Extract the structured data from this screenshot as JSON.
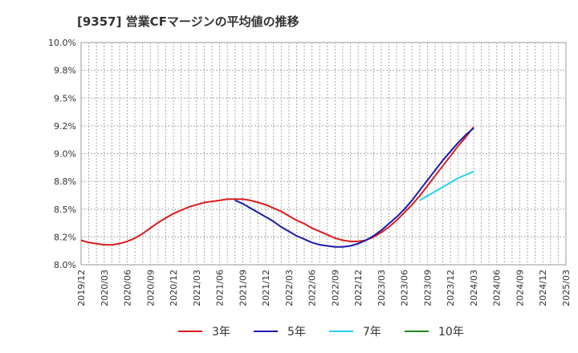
{
  "chart_data": {
    "type": "line",
    "title": "[9357]  営業CFマージンの平均値の推移",
    "xlabel": "",
    "ylabel": "",
    "ylim": [
      8.0,
      10.0
    ],
    "y_ticks": [
      "8.0%",
      "8.2%",
      "8.5%",
      "8.8%",
      "9.0%",
      "9.2%",
      "9.5%",
      "9.8%",
      "10.0%"
    ],
    "x_ticks": [
      "2019/12",
      "2020/03",
      "2020/06",
      "2020/09",
      "2020/12",
      "2021/03",
      "2021/06",
      "2021/09",
      "2021/12",
      "2022/03",
      "2022/06",
      "2022/09",
      "2022/12",
      "2023/03",
      "2023/06",
      "2023/09",
      "2023/12",
      "2024/03",
      "2024/06",
      "2024/09",
      "2024/12",
      "2025/03"
    ],
    "grid": true,
    "legend_position": "bottom",
    "series": [
      {
        "name": "3年",
        "color": "#dd1c1c",
        "x": [
          "2019/12",
          "2020/01",
          "2020/02",
          "2020/03",
          "2020/04",
          "2020/05",
          "2020/06",
          "2020/07",
          "2020/08",
          "2020/09",
          "2020/10",
          "2020/11",
          "2020/12",
          "2021/01",
          "2021/02",
          "2021/03",
          "2021/04",
          "2021/05",
          "2021/06",
          "2021/07",
          "2021/08",
          "2021/09",
          "2021/10",
          "2021/11",
          "2021/12",
          "2022/01",
          "2022/02",
          "2022/03",
          "2022/04",
          "2022/05",
          "2022/06",
          "2022/07",
          "2022/08",
          "2022/09",
          "2022/10",
          "2022/11",
          "2022/12",
          "2023/01",
          "2023/02",
          "2023/03",
          "2023/04",
          "2023/05",
          "2023/06",
          "2023/07",
          "2023/08",
          "2023/09",
          "2023/10",
          "2023/11",
          "2023/12",
          "2024/01",
          "2024/02",
          "2024/03"
        ],
        "values": [
          8.22,
          8.2,
          8.19,
          8.18,
          8.18,
          8.19,
          8.21,
          8.24,
          8.28,
          8.33,
          8.38,
          8.42,
          8.46,
          8.49,
          8.52,
          8.54,
          8.56,
          8.57,
          8.58,
          8.59,
          8.59,
          8.59,
          8.58,
          8.56,
          8.54,
          8.51,
          8.48,
          8.44,
          8.4,
          8.37,
          8.33,
          8.3,
          8.27,
          8.24,
          8.22,
          8.21,
          8.21,
          8.22,
          8.25,
          8.29,
          8.34,
          8.4,
          8.47,
          8.54,
          8.62,
          8.71,
          8.8,
          8.89,
          8.98,
          9.07,
          9.15,
          9.24
        ]
      },
      {
        "name": "5年",
        "color": "#1a1aad",
        "x": [
          "2021/08",
          "2021/09",
          "2021/10",
          "2021/11",
          "2021/12",
          "2022/01",
          "2022/02",
          "2022/03",
          "2022/04",
          "2022/05",
          "2022/06",
          "2022/07",
          "2022/08",
          "2022/09",
          "2022/10",
          "2022/11",
          "2022/12",
          "2023/01",
          "2023/02",
          "2023/03",
          "2023/04",
          "2023/05",
          "2023/06",
          "2023/07",
          "2023/08",
          "2023/09",
          "2023/10",
          "2023/11",
          "2023/12",
          "2024/01",
          "2024/02",
          "2024/03"
        ],
        "values": [
          8.58,
          8.55,
          8.51,
          8.47,
          8.43,
          8.39,
          8.34,
          8.3,
          8.26,
          8.23,
          8.2,
          8.18,
          8.17,
          8.16,
          8.16,
          8.17,
          8.19,
          8.22,
          8.26,
          8.31,
          8.37,
          8.43,
          8.5,
          8.58,
          8.67,
          8.76,
          8.85,
          8.94,
          9.02,
          9.1,
          9.17,
          9.23
        ]
      },
      {
        "name": "7年",
        "color": "#22d4f4",
        "x": [
          "2023/08",
          "2023/09",
          "2023/10",
          "2023/11",
          "2023/12",
          "2024/01",
          "2024/02",
          "2024/03"
        ],
        "values": [
          8.58,
          8.62,
          8.66,
          8.7,
          8.74,
          8.78,
          8.81,
          8.84
        ]
      },
      {
        "name": "10年",
        "color": "#1b8a1b",
        "x": [],
        "values": []
      }
    ]
  }
}
